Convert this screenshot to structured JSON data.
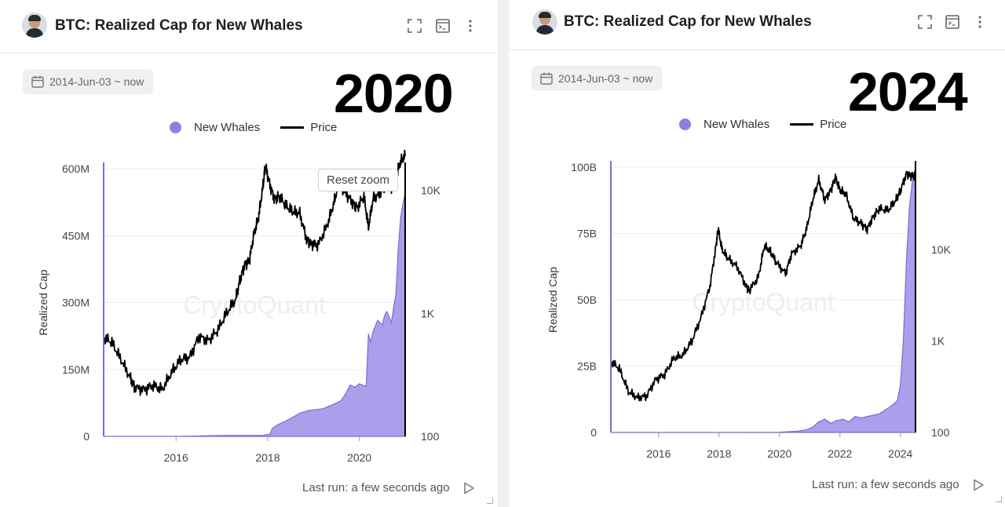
{
  "panels": [
    {
      "title": "BTC: Realized Cap for New Whales",
      "date_range": "2014-Jun-03 ~ now",
      "big_label": "2020",
      "reset_zoom_label": "Reset zoom",
      "last_run": "Last run: a few seconds ago",
      "watermark": "CryptoQuant"
    },
    {
      "title": "BTC: Realized Cap for New Whales",
      "date_range": "2014-Jun-03 ~ now",
      "big_label": "2024",
      "reset_zoom_label": "",
      "last_run": "Last run: a few seconds ago",
      "watermark": "CryptoQuant"
    }
  ],
  "colors": {
    "area": "#9b8ee6",
    "area_line": "#7a6bdc",
    "price": "#000000",
    "grid": "#ececf0"
  },
  "chart_data": [
    {
      "type": "area",
      "title": "BTC: Realized Cap for New Whales",
      "ylabel": "Realized Cap",
      "x_ticks": [
        "2016",
        "2018",
        "2020"
      ],
      "x_range": [
        2014.42,
        2021.0
      ],
      "left_axis": {
        "ticks": [
          "0",
          "150M",
          "300M",
          "450M",
          "600M"
        ],
        "values": [
          0,
          150,
          300,
          450,
          600
        ],
        "ylim": [
          0,
          600
        ],
        "unit": "M"
      },
      "right_axis": {
        "ticks": [
          "100",
          "1K",
          "10K"
        ],
        "values": [
          100,
          1000,
          10000
        ],
        "scale": "log",
        "ylim": [
          100,
          15000
        ]
      },
      "legend": [
        "New Whales",
        "Price"
      ],
      "series": [
        {
          "name": "New Whales",
          "axis": "left",
          "x": [
            2014.42,
            2016.0,
            2017.0,
            2017.9,
            2018.05,
            2018.1,
            2018.2,
            2018.3,
            2018.5,
            2018.7,
            2018.9,
            2019.2,
            2019.4,
            2019.6,
            2019.7,
            2019.8,
            2019.9,
            2020.0,
            2020.15,
            2020.2,
            2020.25,
            2020.3,
            2020.4,
            2020.5,
            2020.55,
            2020.6,
            2020.7,
            2020.75,
            2020.8,
            2020.85,
            2020.9,
            2020.95,
            2021.0
          ],
          "y": [
            0,
            0,
            2,
            2,
            5,
            18,
            25,
            30,
            40,
            52,
            58,
            62,
            70,
            80,
            95,
            115,
            110,
            118,
            112,
            230,
            210,
            235,
            260,
            250,
            270,
            280,
            255,
            290,
            320,
            420,
            490,
            520,
            545
          ]
        },
        {
          "name": "Price",
          "axis": "right",
          "x": [
            2014.42,
            2014.6,
            2014.8,
            2015.0,
            2015.1,
            2015.3,
            2015.5,
            2015.7,
            2015.9,
            2016.1,
            2016.3,
            2016.5,
            2016.7,
            2016.9,
            2017.1,
            2017.3,
            2017.4,
            2017.5,
            2017.6,
            2017.7,
            2017.8,
            2017.9,
            2017.95,
            2018.05,
            2018.15,
            2018.25,
            2018.4,
            2018.55,
            2018.7,
            2018.85,
            2018.95,
            2019.1,
            2019.3,
            2019.45,
            2019.55,
            2019.7,
            2019.85,
            2019.95,
            2020.1,
            2020.2,
            2020.3,
            2020.45,
            2020.6,
            2020.7,
            2020.8,
            2020.9,
            2021.0
          ],
          "y": [
            640,
            580,
            420,
            300,
            250,
            240,
            260,
            240,
            330,
            420,
            440,
            650,
            600,
            720,
            1000,
            1300,
            1900,
            2500,
            2700,
            4400,
            6000,
            11000,
            16000,
            11000,
            8500,
            9000,
            7500,
            6700,
            6500,
            4000,
            3700,
            3600,
            5200,
            8000,
            11500,
            9500,
            8000,
            7200,
            9000,
            5000,
            8500,
            9500,
            11500,
            10700,
            13000,
            17000,
            19000
          ]
        }
      ]
    },
    {
      "type": "area",
      "title": "BTC: Realized Cap for New Whales",
      "ylabel": "Realized Cap",
      "x_ticks": [
        "2016",
        "2018",
        "2020",
        "2022",
        "2024"
      ],
      "x_range": [
        2014.42,
        2024.5
      ],
      "left_axis": {
        "ticks": [
          "0",
          "25B",
          "50B",
          "75B",
          "100B"
        ],
        "values": [
          0,
          25,
          50,
          75,
          100
        ],
        "ylim": [
          0,
          100
        ],
        "unit": "B"
      },
      "right_axis": {
        "ticks": [
          "100",
          "1K",
          "10K"
        ],
        "values": [
          100,
          1000,
          10000
        ],
        "scale": "log",
        "ylim": [
          100,
          80000
        ]
      },
      "legend": [
        "New Whales",
        "Price"
      ],
      "series": [
        {
          "name": "New Whales",
          "axis": "left",
          "x": [
            2014.42,
            2018.0,
            2020.0,
            2020.6,
            2020.9,
            2021.1,
            2021.3,
            2021.5,
            2021.7,
            2021.9,
            2022.1,
            2022.3,
            2022.5,
            2022.7,
            2022.9,
            2023.1,
            2023.3,
            2023.5,
            2023.7,
            2023.9,
            2024.0,
            2024.1,
            2024.2,
            2024.3,
            2024.4,
            2024.5
          ],
          "y": [
            0,
            0,
            0.1,
            0.5,
            1.0,
            2.0,
            4.0,
            5.0,
            3.5,
            4.5,
            5.0,
            4.0,
            6.0,
            5.5,
            6.0,
            6.5,
            7.0,
            8.5,
            10.0,
            12.0,
            18.0,
            35.0,
            65.0,
            85.0,
            95.0,
            100.0
          ]
        },
        {
          "name": "Price",
          "axis": "right",
          "x": [
            2014.42,
            2014.7,
            2015.0,
            2015.3,
            2015.6,
            2015.9,
            2016.2,
            2016.5,
            2016.8,
            2017.1,
            2017.4,
            2017.7,
            2017.9,
            2017.97,
            2018.1,
            2018.3,
            2018.6,
            2018.9,
            2019.0,
            2019.3,
            2019.5,
            2019.7,
            2019.9,
            2020.2,
            2020.4,
            2020.7,
            2020.9,
            2021.1,
            2021.3,
            2021.5,
            2021.7,
            2021.85,
            2022.0,
            2022.2,
            2022.45,
            2022.7,
            2022.9,
            2023.1,
            2023.3,
            2023.6,
            2023.85,
            2024.0,
            2024.2,
            2024.35,
            2024.5
          ],
          "y": [
            600,
            500,
            280,
            240,
            250,
            380,
            430,
            650,
            700,
            1000,
            1800,
            4000,
            11000,
            17000,
            10000,
            8000,
            6500,
            4000,
            3600,
            5000,
            11000,
            9500,
            7200,
            5500,
            9000,
            11000,
            17000,
            35000,
            58000,
            35000,
            45000,
            62000,
            45000,
            40000,
            22000,
            19500,
            16800,
            23000,
            28000,
            27000,
            35000,
            44000,
            68000,
            65000,
            64000
          ]
        }
      ]
    }
  ]
}
